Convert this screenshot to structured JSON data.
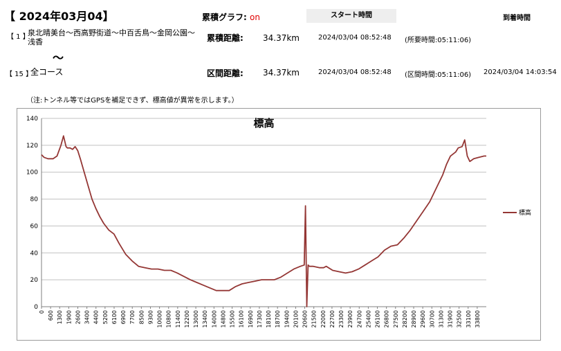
{
  "header": {
    "date": "【 2024年03月04】",
    "graph_label": "累積グラフ:",
    "graph_state": "on",
    "start_time_button": "スタート時間",
    "arrival_time_label": "到着時間"
  },
  "segments": [
    {
      "num": "【 1 】",
      "name": "泉北晴美台～西高野街道～中百舌鳥～金岡公園～浅香",
      "distance_label": "累積距離:",
      "distance": "34.37km",
      "start": "2024/03/04 08:52:48",
      "duration": "(所要時間:05:11:06)"
    },
    {
      "num": "【 15 】",
      "name": "全コース",
      "distance_label": "区間距離:",
      "distance": "34.37km",
      "start": "2024/03/04 08:52:48",
      "duration": "(区間時間:05:11:06)",
      "arrival": "2024/03/04 14:03:54"
    }
  ],
  "tilde": "～",
  "note": "（注:トンネル等ではGPSを補足できず、標高値が異常を示します。）",
  "chart_data": {
    "type": "line",
    "title": "標高",
    "xlabel": "",
    "ylabel": "",
    "ylim": [
      0,
      140
    ],
    "xlim": [
      0,
      34370
    ],
    "grid": true,
    "legend_position": "right",
    "y_ticks": [
      "0",
      "20",
      "40",
      "60",
      "80",
      "100",
      "120",
      "140"
    ],
    "x_ticks": [
      "0",
      "600",
      "1300",
      "1900",
      "2600",
      "3400",
      "4400",
      "5200",
      "6100",
      "6900",
      "7700",
      "8500",
      "9300",
      "10000",
      "10800",
      "11400",
      "12200",
      "13000",
      "13400",
      "14000",
      "14800",
      "15500",
      "16100",
      "16900",
      "17300",
      "18100",
      "18700",
      "19400",
      "20100",
      "20600",
      "21500",
      "22000",
      "22700",
      "23300",
      "23900",
      "24700",
      "25400",
      "26100",
      "26800",
      "27500",
      "28200",
      "28900",
      "29600",
      "30700",
      "31300",
      "31900",
      "32500",
      "33100",
      "33800"
    ],
    "series": [
      {
        "name": "標高",
        "color": "#943634",
        "x": [
          0,
          200,
          500,
          900,
          1200,
          1500,
          1700,
          1900,
          2000,
          2200,
          2400,
          2600,
          2800,
          3000,
          3300,
          3600,
          3900,
          4200,
          4500,
          4800,
          5200,
          5600,
          6000,
          6500,
          7000,
          7500,
          8000,
          8500,
          9000,
          9500,
          10000,
          10500,
          10900,
          11500,
          12000,
          12500,
          13000,
          13500,
          14000,
          14500,
          15000,
          15500,
          16000,
          16500,
          17000,
          17500,
          18000,
          18500,
          19000,
          19500,
          20000,
          20300,
          20400,
          20500,
          20600,
          20700,
          21000,
          21500,
          21800,
          22000,
          22500,
          23000,
          23500,
          24000,
          24500,
          25000,
          25500,
          26000,
          26500,
          27000,
          27500,
          28000,
          28500,
          29000,
          29500,
          30000,
          30500,
          31000,
          31300,
          31600,
          32000,
          32200,
          32500,
          32700,
          32900,
          33100,
          33400,
          33800,
          34200,
          34370
        ],
        "values": [
          113,
          111,
          110,
          110,
          112,
          120,
          127,
          119,
          118,
          118,
          117,
          119,
          116,
          110,
          100,
          90,
          80,
          73,
          67,
          62,
          57,
          54,
          47,
          39,
          34,
          30,
          29,
          28,
          28,
          27,
          27,
          25,
          23,
          20,
          18,
          16,
          14,
          12,
          12,
          12,
          15,
          17,
          18,
          19,
          20,
          20,
          20,
          22,
          25,
          28,
          30,
          31,
          75,
          0,
          31,
          30,
          30,
          29,
          29,
          30,
          27,
          26,
          25,
          26,
          28,
          31,
          34,
          37,
          42,
          45,
          46,
          51,
          57,
          64,
          71,
          78,
          88,
          98,
          106,
          112,
          115,
          118,
          119,
          124,
          112,
          108,
          110,
          111,
          112,
          112
        ]
      }
    ]
  }
}
